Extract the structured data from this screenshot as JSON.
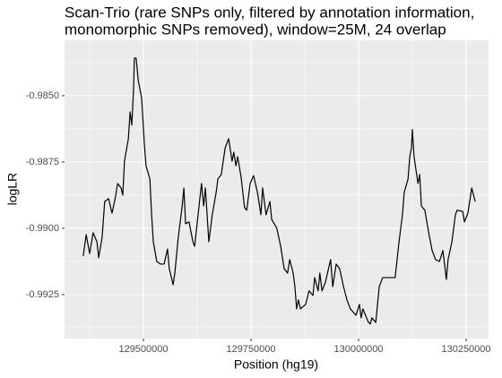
{
  "chart_data": {
    "type": "line",
    "title": [
      "Scan-Trio (rare SNPs only, filtered by annotation information,",
      " monomorphic SNPs removed), window=25M, 24 overlap"
    ],
    "xlabel": "Position (hg19)",
    "ylabel": "logLR",
    "color": "#000000",
    "grid": true,
    "xlim": [
      129316667,
      130302083
    ],
    "ylim": [
      -0.99416,
      -0.98291
    ],
    "xticks": [
      129500000,
      129750000,
      130000000,
      130250000
    ],
    "yticks": [
      {
        "value": -0.985,
        "label": "-0.9850"
      },
      {
        "value": -0.9875,
        "label": "-0.9875"
      },
      {
        "value": -0.99,
        "label": "-0.9900"
      },
      {
        "value": -0.9925,
        "label": "-0.9925"
      }
    ],
    "x": [
      129360000,
      129367000,
      129375000,
      129383000,
      129392000,
      129396000,
      129404000,
      129410000,
      129419000,
      129427000,
      129435000,
      129440000,
      129448000,
      129452000,
      129456000,
      129465000,
      129469000,
      129473000,
      129477000,
      129479000,
      129483000,
      129488000,
      129496000,
      129502000,
      129506000,
      129515000,
      129519000,
      129523000,
      129531000,
      129540000,
      129548000,
      129556000,
      129560000,
      129569000,
      129573000,
      129581000,
      129590000,
      129594000,
      129598000,
      129606000,
      129615000,
      129619000,
      129627000,
      129635000,
      129640000,
      129644000,
      129652000,
      129660000,
      129669000,
      129673000,
      129681000,
      129690000,
      129698000,
      129706000,
      129710000,
      129715000,
      129719000,
      129727000,
      129735000,
      129740000,
      129748000,
      129756000,
      129765000,
      129773000,
      129777000,
      129785000,
      129794000,
      129798000,
      129810000,
      129819000,
      129827000,
      129835000,
      129840000,
      129848000,
      129852000,
      129856000,
      129860000,
      129865000,
      129877000,
      129885000,
      129894000,
      129898000,
      129906000,
      129910000,
      129915000,
      129923000,
      129935000,
      129940000,
      129948000,
      129956000,
      129965000,
      129973000,
      129981000,
      129994000,
      130002000,
      130006000,
      130010000,
      130023000,
      130027000,
      130031000,
      130040000,
      130048000,
      130056000,
      130085000,
      130094000,
      130102000,
      130106000,
      130115000,
      130119000,
      130123000,
      130125000,
      130129000,
      130138000,
      130142000,
      130146000,
      130154000,
      130163000,
      130171000,
      130179000,
      130188000,
      130196000,
      130204000,
      130208000,
      130217000,
      130225000,
      130229000,
      130242000,
      130246000,
      130254000,
      130263000,
      130271000
    ],
    "values": [
      -0.99105,
      -0.99024,
      -0.99095,
      -0.99017,
      -0.99051,
      -0.99111,
      -0.99034,
      -0.98899,
      -0.98888,
      -0.98943,
      -0.98882,
      -0.98831,
      -0.98848,
      -0.98875,
      -0.98747,
      -0.98662,
      -0.98561,
      -0.98611,
      -0.98476,
      -0.98358,
      -0.98358,
      -0.98443,
      -0.9851,
      -0.98679,
      -0.98764,
      -0.98814,
      -0.98949,
      -0.99051,
      -0.99125,
      -0.99135,
      -0.99135,
      -0.99078,
      -0.99152,
      -0.99213,
      -0.99169,
      -0.99034,
      -0.98916,
      -0.98848,
      -0.98983,
      -0.98976,
      -0.99051,
      -0.99068,
      -0.98949,
      -0.98831,
      -0.98916,
      -0.98848,
      -0.99051,
      -0.98949,
      -0.98865,
      -0.98814,
      -0.98797,
      -0.98696,
      -0.98662,
      -0.98747,
      -0.98713,
      -0.98764,
      -0.9873,
      -0.98807,
      -0.98922,
      -0.98932,
      -0.98831,
      -0.98801,
      -0.98865,
      -0.98949,
      -0.98848,
      -0.98949,
      -0.98899,
      -0.98966,
      -0.99,
      -0.99068,
      -0.99152,
      -0.99169,
      -0.99118,
      -0.99169,
      -0.9922,
      -0.99304,
      -0.9927,
      -0.99304,
      -0.99287,
      -0.99236,
      -0.99253,
      -0.99186,
      -0.99236,
      -0.99169,
      -0.99236,
      -0.99203,
      -0.99118,
      -0.9922,
      -0.99135,
      -0.99152,
      -0.9922,
      -0.9927,
      -0.99304,
      -0.99328,
      -0.99287,
      -0.99338,
      -0.99304,
      -0.99355,
      -0.99361,
      -0.99338,
      -0.99355,
      -0.9922,
      -0.99186,
      -0.99186,
      -0.99051,
      -0.98949,
      -0.98865,
      -0.98814,
      -0.9873,
      -0.98696,
      -0.98628,
      -0.9873,
      -0.98831,
      -0.98797,
      -0.98916,
      -0.98932,
      -0.99017,
      -0.99084,
      -0.99118,
      -0.99125,
      -0.99084,
      -0.99193,
      -0.99118,
      -0.99051,
      -0.98949,
      -0.98932,
      -0.98936,
      -0.98976,
      -0.98943,
      -0.98848,
      -0.98899
    ]
  }
}
